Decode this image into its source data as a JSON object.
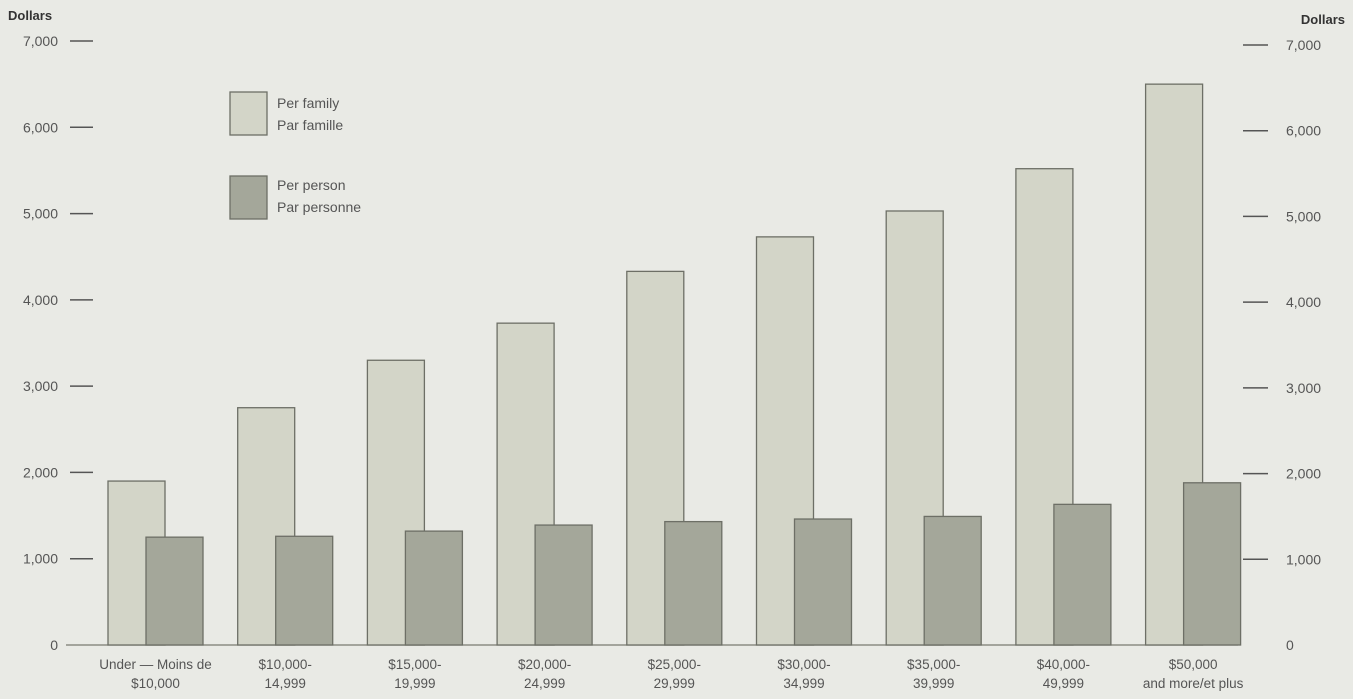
{
  "chart_data": {
    "type": "bar",
    "left_axis_title": "Dollars",
    "right_axis_title": "Dollars",
    "left_tick_labels": [
      "0",
      "1,000",
      "2,000",
      "3,000",
      "4,000",
      "5,000",
      "6,000",
      "7,000"
    ],
    "right_tick_labels": [
      "0",
      "1,000",
      "2,000",
      "3,000",
      "4,000",
      "5,000",
      "6,000",
      "7,000"
    ],
    "ylim": [
      0,
      7000
    ],
    "categories": [
      {
        "line1": "Under — Moins de",
        "line2": "$10,000"
      },
      {
        "line1": "$10,000-",
        "line2": "14,999"
      },
      {
        "line1": "$15,000-",
        "line2": "19,999"
      },
      {
        "line1": "$20,000-",
        "line2": "24,999"
      },
      {
        "line1": "$25,000-",
        "line2": "29,999"
      },
      {
        "line1": "$30,000-",
        "line2": "34,999"
      },
      {
        "line1": "$35,000-",
        "line2": "39,999"
      },
      {
        "line1": "$40,000-",
        "line2": "49,999"
      },
      {
        "line1": "$50,000",
        "line2": "and more/et plus"
      }
    ],
    "series": [
      {
        "line1": "Per family",
        "line2": "Par famille",
        "color": "#d3d5c8",
        "values": [
          1900,
          2750,
          3300,
          3730,
          4330,
          4730,
          5030,
          5520,
          6500
        ]
      },
      {
        "line1": "Per person",
        "line2": "Par personne",
        "color": "#a4a79a",
        "values": [
          1250,
          1260,
          1320,
          1390,
          1430,
          1460,
          1490,
          1630,
          1880
        ]
      }
    ],
    "grid": false,
    "legend_position": "top-left"
  }
}
